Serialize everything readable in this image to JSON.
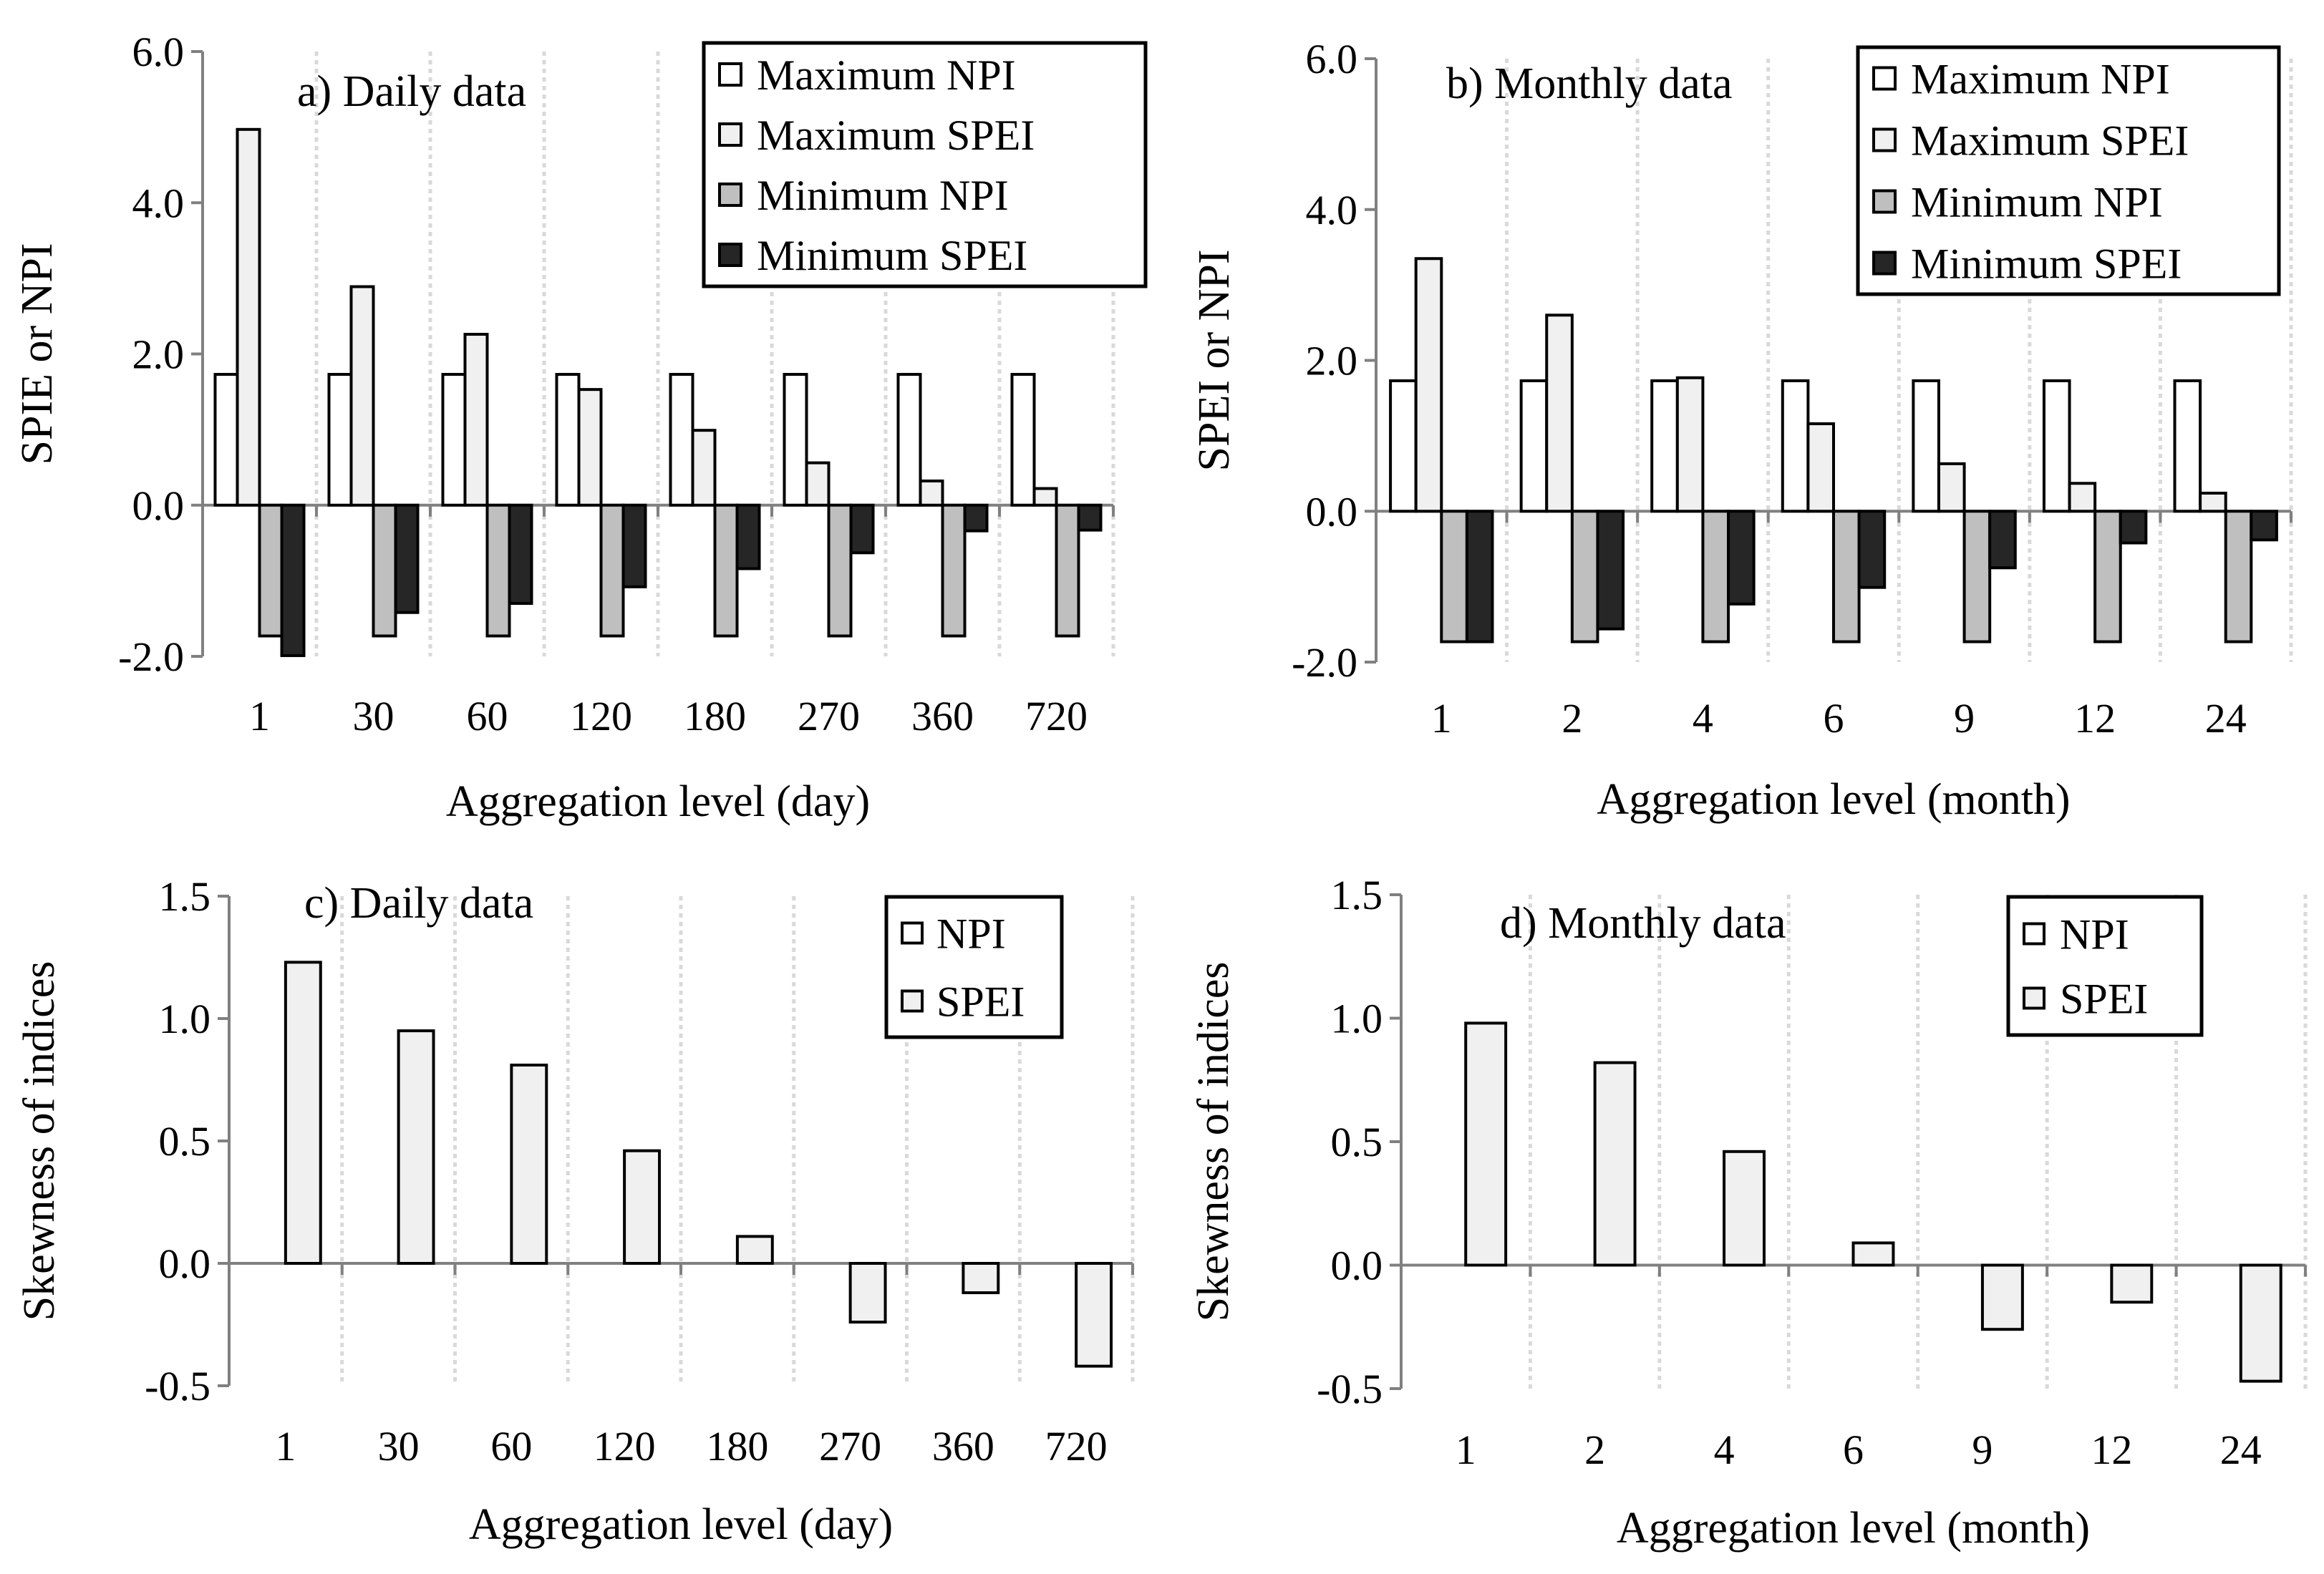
{
  "colors": {
    "max_npi": "#ffffff",
    "max_spei": "#f0f0f0",
    "min_npi": "#bfbfbf",
    "min_spei": "#262626",
    "skew_bar": "#f0f0f0",
    "axis": "#808080",
    "grid": "#d9d9d9"
  },
  "chart_data": [
    {
      "type": "bar",
      "title": "a) Daily data",
      "xlabel": "Aggregation level (day)",
      "ylabel": "SPIE or NPI",
      "categories": [
        "1",
        "30",
        "60",
        "120",
        "180",
        "270",
        "360",
        "720"
      ],
      "yticks": [
        "-2.0",
        "0.0",
        "2.0",
        "4.0",
        "6.0"
      ],
      "ylim": [
        -2,
        6
      ],
      "legend_position": "top-right",
      "series": [
        {
          "name": "Maximum NPI",
          "key": "max_npi",
          "values": [
            1.73,
            1.73,
            1.73,
            1.73,
            1.73,
            1.73,
            1.73,
            1.73
          ]
        },
        {
          "name": "Maximum SPEI",
          "key": "max_spei",
          "values": [
            4.97,
            2.89,
            2.26,
            1.53,
            0.99,
            0.56,
            0.32,
            0.22
          ]
        },
        {
          "name": "Minimum NPI",
          "key": "min_npi",
          "values": [
            -1.73,
            -1.73,
            -1.73,
            -1.73,
            -1.73,
            -1.73,
            -1.73,
            -1.73
          ]
        },
        {
          "name": "Minimum SPEI",
          "key": "min_spei",
          "values": [
            -1.99,
            -1.42,
            -1.3,
            -1.08,
            -0.84,
            -0.63,
            -0.34,
            -0.33
          ]
        }
      ]
    },
    {
      "type": "bar",
      "title": "b) Monthly data",
      "xlabel": "Aggregation level (month)",
      "ylabel": "SPEI or NPI",
      "categories": [
        "1",
        "2",
        "4",
        "6",
        "9",
        "12",
        "24"
      ],
      "yticks": [
        "-2.0",
        "0.0",
        "2.0",
        "4.0",
        "6.0"
      ],
      "ylim": [
        -2,
        6
      ],
      "legend_position": "top-right",
      "series": [
        {
          "name": "Maximum NPI",
          "key": "max_npi",
          "values": [
            1.73,
            1.73,
            1.73,
            1.73,
            1.73,
            1.73,
            1.73
          ]
        },
        {
          "name": "Maximum SPEI",
          "key": "max_spei",
          "values": [
            3.35,
            2.6,
            1.77,
            1.16,
            0.63,
            0.37,
            0.24
          ]
        },
        {
          "name": "Minimum NPI",
          "key": "min_npi",
          "values": [
            -1.73,
            -1.73,
            -1.73,
            -1.73,
            -1.73,
            -1.73,
            -1.73
          ]
        },
        {
          "name": "Minimum SPEI",
          "key": "min_spei",
          "values": [
            -1.73,
            -1.56,
            -1.23,
            -1.01,
            -0.75,
            -0.42,
            -0.38
          ]
        }
      ]
    },
    {
      "type": "bar",
      "title": "c) Daily data",
      "xlabel": "Aggregation level (day)",
      "ylabel": "Skewness of indices",
      "categories": [
        "1",
        "30",
        "60",
        "120",
        "180",
        "270",
        "360",
        "720"
      ],
      "yticks": [
        "-0.5",
        "0.0",
        "0.5",
        "1.0",
        "1.5"
      ],
      "ylim": [
        -0.5,
        1.5
      ],
      "legend_position": "top-right",
      "series": [
        {
          "name": "NPI",
          "key": "max_npi",
          "values": [
            0,
            0,
            0,
            0,
            0,
            0,
            0,
            0
          ]
        },
        {
          "name": "SPEI",
          "key": "skew_bar",
          "values": [
            1.23,
            0.95,
            0.81,
            0.46,
            0.11,
            -0.24,
            -0.12,
            -0.42
          ]
        }
      ]
    },
    {
      "type": "bar",
      "title": "d) Monthly data",
      "xlabel": "Aggregation level (month)",
      "ylabel": "Skewness of indices",
      "categories": [
        "1",
        "2",
        "4",
        "6",
        "9",
        "12",
        "24"
      ],
      "yticks": [
        "-0.5",
        "0.0",
        "0.5",
        "1.0",
        "1.5"
      ],
      "ylim": [
        -0.5,
        1.5
      ],
      "legend_position": "top-right",
      "series": [
        {
          "name": "NPI",
          "key": "max_npi",
          "values": [
            0,
            0,
            0,
            0,
            0,
            0,
            0
          ]
        },
        {
          "name": "SPEI",
          "key": "skew_bar",
          "values": [
            0.98,
            0.82,
            0.46,
            0.09,
            -0.26,
            -0.15,
            -0.47
          ]
        }
      ]
    }
  ]
}
